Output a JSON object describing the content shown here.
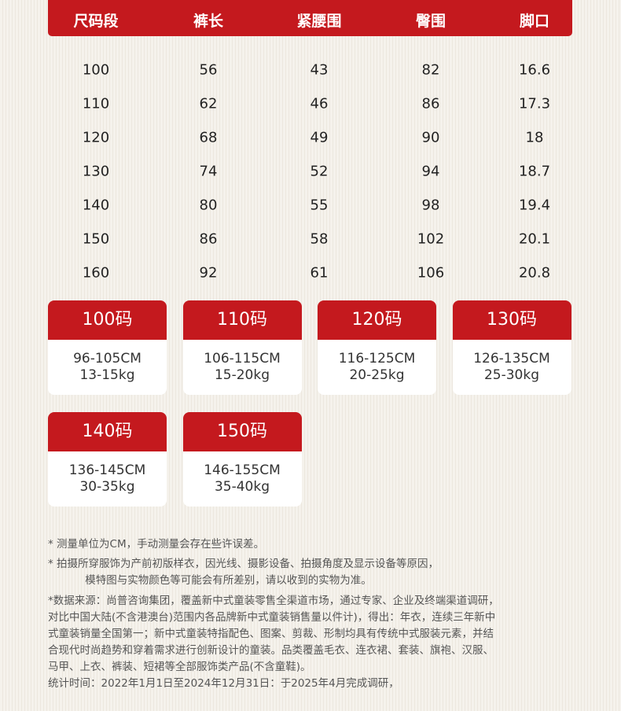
{
  "table": {
    "headers": [
      "尺码段",
      "裤长",
      "紧腰围",
      "臀围",
      "脚口"
    ],
    "rows": [
      [
        "100",
        "56",
        "43",
        "82",
        "16.6"
      ],
      [
        "110",
        "62",
        "46",
        "86",
        "17.3"
      ],
      [
        "120",
        "68",
        "49",
        "90",
        "18"
      ],
      [
        "130",
        "74",
        "52",
        "94",
        "18.7"
      ],
      [
        "140",
        "80",
        "55",
        "98",
        "19.4"
      ],
      [
        "150",
        "86",
        "58",
        "102",
        "20.1"
      ],
      [
        "160",
        "92",
        "61",
        "106",
        "20.8"
      ]
    ]
  },
  "cards": [
    {
      "size": "100码",
      "height": "96-105CM",
      "weight": "13-15kg"
    },
    {
      "size": "110码",
      "height": "106-115CM",
      "weight": "15-20kg"
    },
    {
      "size": "120码",
      "height": "116-125CM",
      "weight": "20-25kg"
    },
    {
      "size": "130码",
      "height": "126-135CM",
      "weight": "25-30kg"
    },
    {
      "size": "140码",
      "height": "136-145CM",
      "weight": "30-35kg"
    },
    {
      "size": "150码",
      "height": "146-155CM",
      "weight": "35-40kg"
    }
  ],
  "colors": {
    "accent": "#c4191e",
    "background": "#f3efe8"
  },
  "notes": [
    "* 测量单位为CM，手动测量会存在些许误差。",
    "* 拍摄所穿服饰为产前初版样衣，因光线、摄影设备、拍摄角度及显示设备等原因，",
    "           模特图与实物颜色等可能会有所差别，请以收到的实物为准。",
    "*数据来源：尚普咨询集团，覆盖新中式童装零售全渠道市场，通过专家、企业及终端渠道调研，",
    "对比中国大陆(不含港澳台)范围内各品牌新中式童装销售量以件计)，得出：年衣，连续三年新中",
    "式童装销量全国第一；新中式童装特指配色、图案、剪裁、形制均具有传统中式服装元素，并结",
    "合现代时尚趋势和穿着需求进行创新设计的童装。品类覆盖毛衣、连衣裙、套装、旗袍、汉服、",
    "马甲、上衣、裤装、短裙等全部服饰类产品(不含童鞋)。",
    "统计时间：2022年1月1日至2024年12月31日：于2025年4月完成调研，"
  ]
}
